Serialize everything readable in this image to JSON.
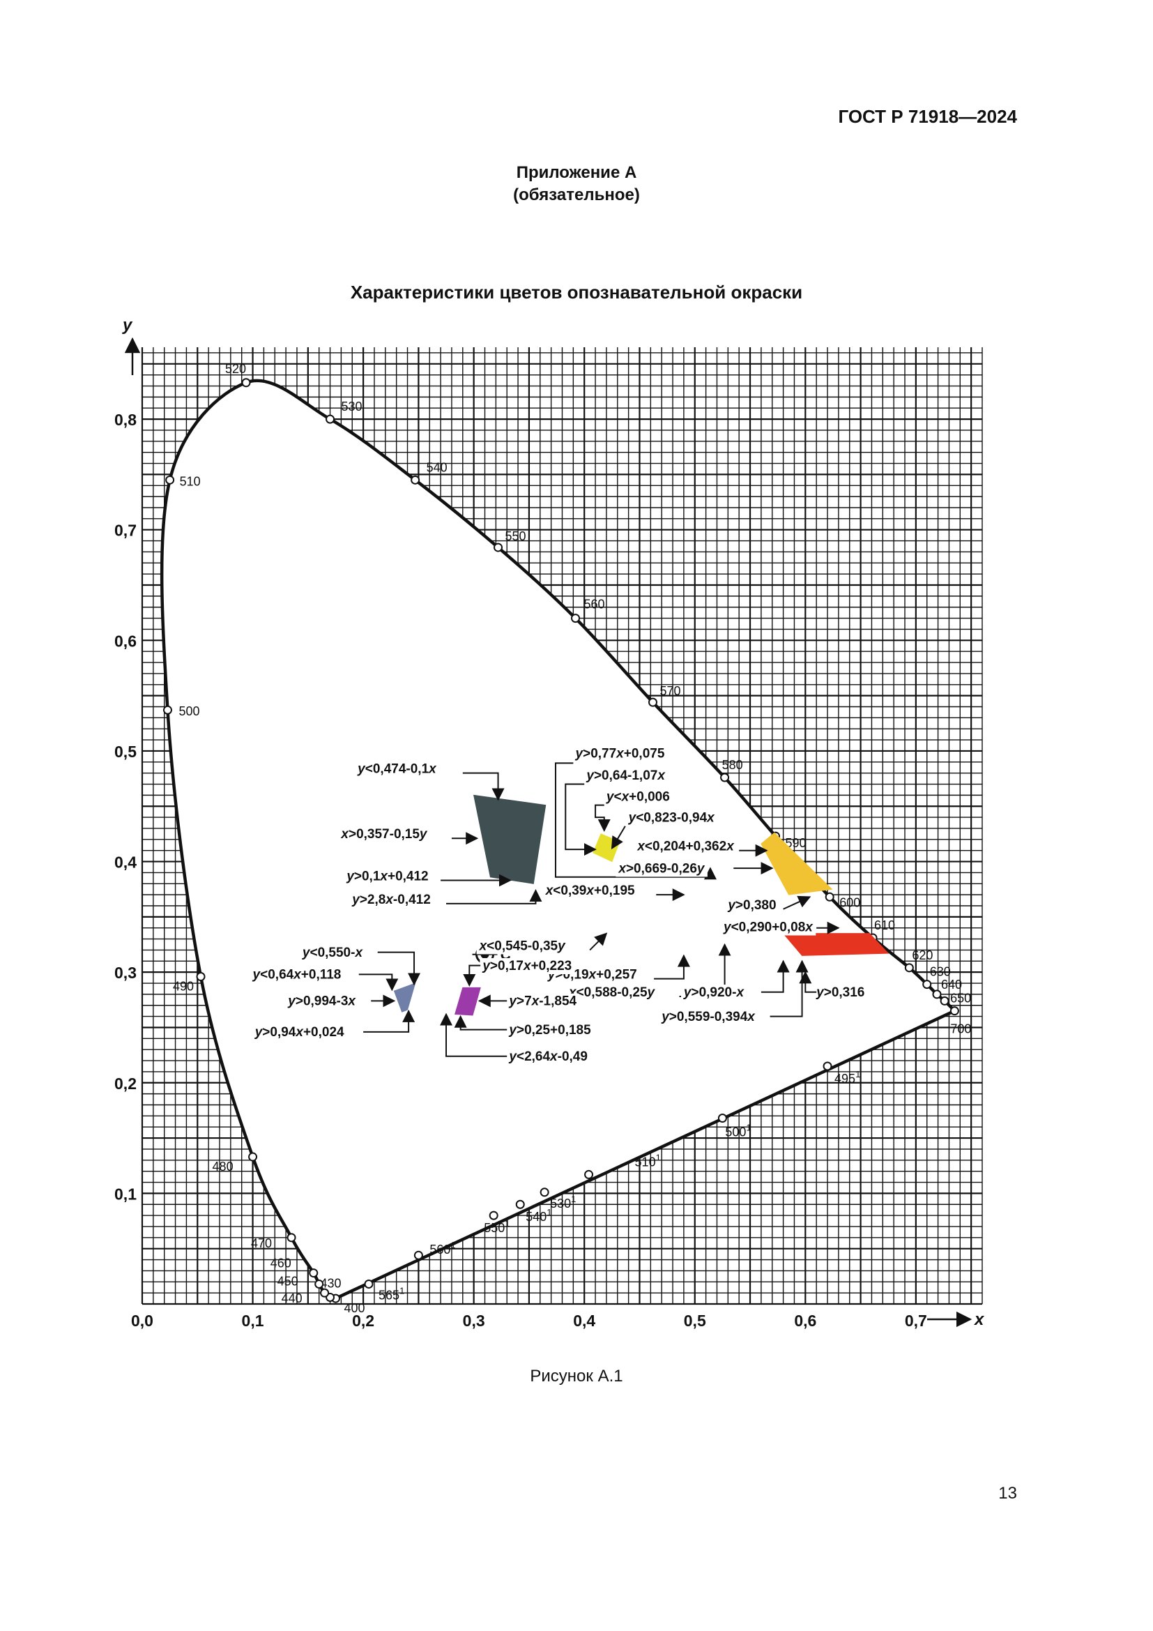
{
  "header": {
    "standard": "ГОСТ Р 71918—2024"
  },
  "appendix": {
    "title": "Приложение А",
    "note": "(обязательное)"
  },
  "figure": {
    "caption": "Рисунок А.1"
  },
  "page": {
    "number": "13"
  },
  "chart_data": {
    "type": "scatter",
    "title": "Характеристики цветов опознавательной окраски",
    "xlabel": "x",
    "ylabel": "y",
    "xlim": [
      0.0,
      0.76
    ],
    "ylim": [
      0.0,
      0.865
    ],
    "grid": true,
    "x_ticks": [
      {
        "v": 0.0,
        "label": "0,0"
      },
      {
        "v": 0.1,
        "label": "0,1"
      },
      {
        "v": 0.2,
        "label": "0,2"
      },
      {
        "v": 0.3,
        "label": "0,3"
      },
      {
        "v": 0.4,
        "label": "0,4"
      },
      {
        "v": 0.5,
        "label": "0,5"
      },
      {
        "v": 0.6,
        "label": "0,6"
      },
      {
        "v": 0.7,
        "label": "0,7"
      }
    ],
    "y_ticks": [
      {
        "v": 0.1,
        "label": "0,1"
      },
      {
        "v": 0.2,
        "label": "0,2"
      },
      {
        "v": 0.3,
        "label": "0,3"
      },
      {
        "v": 0.4,
        "label": "0,4"
      },
      {
        "v": 0.5,
        "label": "0,5"
      },
      {
        "v": 0.6,
        "label": "0,6"
      },
      {
        "v": 0.7,
        "label": "0,7"
      },
      {
        "v": 0.8,
        "label": "0,8"
      }
    ],
    "spectral_locus": [
      {
        "x": 0.175,
        "y": 0.005,
        "label": "400"
      },
      {
        "x": 0.17,
        "y": 0.006,
        "label": "430"
      },
      {
        "x": 0.165,
        "y": 0.01,
        "label": "440"
      },
      {
        "x": 0.16,
        "y": 0.018,
        "label": "450"
      },
      {
        "x": 0.155,
        "y": 0.028,
        "label": "460"
      },
      {
        "x": 0.135,
        "y": 0.06,
        "label": "470"
      },
      {
        "x": 0.1,
        "y": 0.133,
        "label": "480"
      },
      {
        "x": 0.053,
        "y": 0.296,
        "label": "490"
      },
      {
        "x": 0.023,
        "y": 0.537,
        "label": "500"
      },
      {
        "x": 0.025,
        "y": 0.745,
        "label": "510"
      },
      {
        "x": 0.094,
        "y": 0.833,
        "label": "520"
      },
      {
        "x": 0.17,
        "y": 0.8,
        "label": "530"
      },
      {
        "x": 0.247,
        "y": 0.745,
        "label": "540"
      },
      {
        "x": 0.322,
        "y": 0.684,
        "label": "550"
      },
      {
        "x": 0.392,
        "y": 0.62,
        "label": "560"
      },
      {
        "x": 0.462,
        "y": 0.544,
        "label": "570"
      },
      {
        "x": 0.527,
        "y": 0.476,
        "label": "580"
      },
      {
        "x": 0.573,
        "y": 0.423,
        "label": "590"
      },
      {
        "x": 0.622,
        "y": 0.368,
        "label": "600"
      },
      {
        "x": 0.661,
        "y": 0.331,
        "label": "610"
      },
      {
        "x": 0.694,
        "y": 0.304,
        "label": "620"
      },
      {
        "x": 0.71,
        "y": 0.289,
        "label": "630"
      },
      {
        "x": 0.719,
        "y": 0.28,
        "label": "640"
      },
      {
        "x": 0.726,
        "y": 0.274,
        "label": "650"
      },
      {
        "x": 0.735,
        "y": 0.265,
        "label": "700"
      }
    ],
    "purple_line": [
      {
        "x": 0.62,
        "y": 0.215,
        "label": "495",
        "sup": "1"
      },
      {
        "x": 0.525,
        "y": 0.168,
        "label": "500",
        "sup": "1"
      },
      {
        "x": 0.404,
        "y": 0.117,
        "label": "510",
        "sup": "1"
      },
      {
        "x": 0.364,
        "y": 0.101,
        "label": "530",
        "sup": "1"
      },
      {
        "x": 0.342,
        "y": 0.09,
        "label": "540",
        "sup": "1"
      },
      {
        "x": 0.318,
        "y": 0.08,
        "label": "550",
        "sup": "1"
      },
      {
        "x": 0.25,
        "y": 0.044,
        "label": "560",
        "sup": "1"
      },
      {
        "x": 0.205,
        "y": 0.018,
        "label": "565",
        "sup": "1"
      }
    ],
    "illuminant": {
      "x": 0.31,
      "y": 0.316,
      "label": "C"
    },
    "color_regions": [
      {
        "name": "dark-grey",
        "color": "#3f4f52",
        "points": [
          {
            "x": 0.3,
            "y": 0.46
          },
          {
            "x": 0.365,
            "y": 0.451
          },
          {
            "x": 0.354,
            "y": 0.38
          },
          {
            "x": 0.315,
            "y": 0.386
          }
        ]
      },
      {
        "name": "yellow-small",
        "color": "#e6e02a",
        "points": [
          {
            "x": 0.415,
            "y": 0.425
          },
          {
            "x": 0.432,
            "y": 0.418
          },
          {
            "x": 0.425,
            "y": 0.4
          },
          {
            "x": 0.408,
            "y": 0.408
          }
        ]
      },
      {
        "name": "yellow-orange",
        "color": "#f1c232",
        "points": [
          {
            "x": 0.56,
            "y": 0.416
          },
          {
            "x": 0.572,
            "y": 0.426
          },
          {
            "x": 0.624,
            "y": 0.375
          },
          {
            "x": 0.585,
            "y": 0.37
          }
        ]
      },
      {
        "name": "red",
        "color": "#e53521",
        "points": [
          {
            "x": 0.58,
            "y": 0.335
          },
          {
            "x": 0.658,
            "y": 0.335
          },
          {
            "x": 0.675,
            "y": 0.317
          },
          {
            "x": 0.597,
            "y": 0.315
          }
        ]
      },
      {
        "name": "blue-grey",
        "color": "#6f7fa8",
        "points": [
          {
            "x": 0.228,
            "y": 0.283
          },
          {
            "x": 0.247,
            "y": 0.29
          },
          {
            "x": 0.24,
            "y": 0.266
          },
          {
            "x": 0.235,
            "y": 0.264
          }
        ]
      },
      {
        "name": "purple",
        "color": "#9b3aa8",
        "points": [
          {
            "x": 0.29,
            "y": 0.286
          },
          {
            "x": 0.306,
            "y": 0.286
          },
          {
            "x": 0.299,
            "y": 0.261
          },
          {
            "x": 0.283,
            "y": 0.262
          }
        ]
      }
    ],
    "annotations": [
      {
        "text": "y<0,474-0,1x",
        "ax": 0.195,
        "ay": 0.48,
        "anchor": "start",
        "leader": [
          [
            0.29,
            0.48
          ],
          [
            0.322,
            0.48
          ],
          [
            0.322,
            0.456
          ]
        ]
      },
      {
        "text": "x>0,357-0,15y",
        "ax": 0.18,
        "ay": 0.421,
        "anchor": "start",
        "leader": [
          [
            0.28,
            0.421
          ],
          [
            0.303,
            0.421
          ]
        ]
      },
      {
        "text": "y>0,1x+0,412",
        "ax": 0.185,
        "ay": 0.383,
        "anchor": "start",
        "leader": [
          [
            0.27,
            0.383
          ],
          [
            0.333,
            0.383
          ]
        ]
      },
      {
        "text": "y>2,8x-0,412",
        "ax": 0.19,
        "ay": 0.362,
        "anchor": "start",
        "leader": [
          [
            0.275,
            0.362
          ],
          [
            0.356,
            0.362
          ],
          [
            0.356,
            0.374
          ]
        ]
      },
      {
        "text": "y>0,77x+0,075",
        "ax": 0.392,
        "ay": 0.494,
        "anchor": "start",
        "leader": [
          [
            0.39,
            0.489
          ],
          [
            0.374,
            0.489
          ],
          [
            0.374,
            0.386
          ],
          [
            0.514,
            0.386
          ],
          [
            0.514,
            0.394
          ]
        ]
      },
      {
        "text": "y>0,64-1,07x",
        "ax": 0.402,
        "ay": 0.474,
        "anchor": "start",
        "leader": [
          [
            0.4,
            0.47
          ],
          [
            0.383,
            0.47
          ],
          [
            0.383,
            0.411
          ],
          [
            0.41,
            0.411
          ]
        ]
      },
      {
        "text": "y<x+0,006",
        "ax": 0.42,
        "ay": 0.455,
        "anchor": "start",
        "leader": [
          [
            0.418,
            0.451
          ],
          [
            0.41,
            0.451
          ],
          [
            0.41,
            0.44
          ],
          [
            0.418,
            0.44
          ],
          [
            0.418,
            0.428
          ]
        ]
      },
      {
        "text": "y<0,823-0,94x",
        "ax": 0.44,
        "ay": 0.436,
        "anchor": "start",
        "leader": [
          [
            0.437,
            0.432
          ],
          [
            0.425,
            0.412
          ]
        ]
      },
      {
        "text": "x<0,204+0,362x",
        "ax": 0.448,
        "ay": 0.41,
        "anchor": "start",
        "leader": [
          [
            0.54,
            0.41
          ],
          [
            0.565,
            0.41
          ]
        ]
      },
      {
        "text": "x>0,669-0,26y",
        "ax": 0.431,
        "ay": 0.39,
        "anchor": "start",
        "leader": [
          [
            0.535,
            0.394
          ],
          [
            0.57,
            0.394
          ]
        ]
      },
      {
        "text": "x<0,39x+0,195",
        "ax": 0.365,
        "ay": 0.37,
        "anchor": "start",
        "leader": [
          [
            0.465,
            0.37
          ],
          [
            0.49,
            0.37
          ]
        ]
      },
      {
        "text": "x<0,545-0,35y",
        "ax": 0.305,
        "ay": 0.32,
        "anchor": "start",
        "leader": [
          [
            0.405,
            0.32
          ],
          [
            0.42,
            0.335
          ]
        ]
      },
      {
        "text": "y>0,19x+0,257",
        "ax": 0.367,
        "ay": 0.294,
        "anchor": "start",
        "leader": [
          [
            0.463,
            0.294
          ],
          [
            0.49,
            0.294
          ],
          [
            0.49,
            0.315
          ]
        ]
      },
      {
        "text": "x<0,588-0,25y",
        "ax": 0.386,
        "ay": 0.278,
        "anchor": "start",
        "leader": [
          [
            0.486,
            0.278
          ],
          [
            0.527,
            0.278
          ],
          [
            0.527,
            0.325
          ]
        ]
      },
      {
        "text": "y>0,380",
        "ax": 0.53,
        "ay": 0.357,
        "anchor": "start",
        "leader": [
          [
            0.58,
            0.357
          ],
          [
            0.604,
            0.368
          ]
        ]
      },
      {
        "text": "y<0,290+0,08x",
        "ax": 0.526,
        "ay": 0.337,
        "anchor": "start",
        "leader": [
          [
            0.61,
            0.34
          ],
          [
            0.63,
            0.34
          ]
        ]
      },
      {
        "text": "y>0,920-x",
        "ax": 0.49,
        "ay": 0.278,
        "anchor": "start",
        "leader": [
          [
            0.56,
            0.282
          ],
          [
            0.58,
            0.282
          ],
          [
            0.58,
            0.31
          ]
        ]
      },
      {
        "text": "y>0,559-0,394x",
        "ax": 0.47,
        "ay": 0.256,
        "anchor": "start",
        "leader": [
          [
            0.568,
            0.26
          ],
          [
            0.597,
            0.26
          ],
          [
            0.597,
            0.31
          ]
        ]
      },
      {
        "text": "y>0,316",
        "ax": 0.61,
        "ay": 0.278,
        "anchor": "start",
        "leader": [
          [
            0.61,
            0.282
          ],
          [
            0.6,
            0.282
          ],
          [
            0.6,
            0.3
          ]
        ]
      },
      {
        "text": "y<0,550-x",
        "ax": 0.145,
        "ay": 0.314,
        "anchor": "start",
        "leader": [
          [
            0.213,
            0.318
          ],
          [
            0.246,
            0.318
          ],
          [
            0.246,
            0.289
          ]
        ]
      },
      {
        "text": "y<0,64x+0,118",
        "ax": 0.1,
        "ay": 0.294,
        "anchor": "start",
        "leader": [
          [
            0.196,
            0.298
          ],
          [
            0.226,
            0.298
          ],
          [
            0.226,
            0.284
          ]
        ]
      },
      {
        "text": "y>0,994-3x",
        "ax": 0.132,
        "ay": 0.27,
        "anchor": "start",
        "leader": [
          [
            0.207,
            0.274
          ],
          [
            0.228,
            0.274
          ]
        ]
      },
      {
        "text": "y>0,94x+0,024",
        "ax": 0.102,
        "ay": 0.242,
        "anchor": "start",
        "leader": [
          [
            0.2,
            0.246
          ],
          [
            0.241,
            0.246
          ],
          [
            0.241,
            0.265
          ]
        ]
      },
      {
        "text": "y>0,17x+0,223",
        "ax": 0.308,
        "ay": 0.302,
        "anchor": "start",
        "leader": [
          [
            0.306,
            0.306
          ],
          [
            0.296,
            0.306
          ],
          [
            0.296,
            0.288
          ]
        ]
      },
      {
        "text": "y>7x-1,854",
        "ax": 0.332,
        "ay": 0.27,
        "anchor": "start",
        "leader": [
          [
            0.33,
            0.274
          ],
          [
            0.305,
            0.274
          ]
        ]
      },
      {
        "text": "y>0,25+0,185",
        "ax": 0.332,
        "ay": 0.244,
        "anchor": "start",
        "leader": [
          [
            0.33,
            0.248
          ],
          [
            0.288,
            0.248
          ],
          [
            0.288,
            0.26
          ]
        ]
      },
      {
        "text": "y<2,64x-0,49",
        "ax": 0.332,
        "ay": 0.22,
        "anchor": "start",
        "leader": [
          [
            0.33,
            0.224
          ],
          [
            0.275,
            0.224
          ],
          [
            0.275,
            0.262
          ]
        ]
      }
    ]
  }
}
